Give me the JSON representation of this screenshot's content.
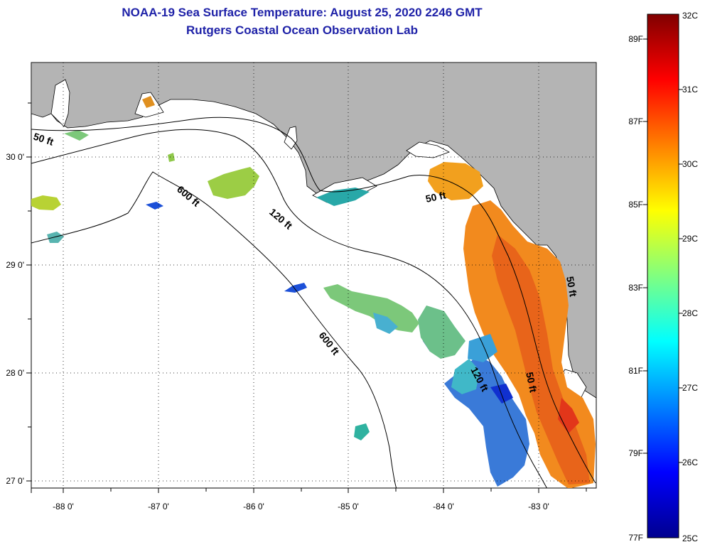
{
  "header": {
    "title": "NOAA-19 Sea Surface Temperature:  August 25, 2020 2246 GMT",
    "subtitle": "Rutgers Coastal Ocean Observation Lab"
  },
  "map": {
    "longitude_labels": [
      "-88 0'",
      "-87 0'",
      "-86 0'",
      "-85 0'",
      "-84 0'",
      "-83 0'"
    ],
    "latitude_labels": [
      "30 0'",
      "29 0'",
      "28 0'",
      "27 0'"
    ],
    "contour_labels": {
      "c50_nw": "50 ft",
      "c600_n": "600 ft",
      "c120": "120 ft",
      "c50_ne": "50 ft",
      "c600_s": "600 ft",
      "c120_s": "120 ft",
      "c50_se": "50 ft",
      "c50_e": "50 ft"
    }
  },
  "colorbar": {
    "fahrenheit_labels": [
      "89F",
      "87F",
      "85F",
      "83F",
      "81F",
      "79F",
      "77F"
    ],
    "celsius_labels": [
      "32C",
      "31C",
      "30C",
      "29C",
      "28C",
      "27C",
      "26C",
      "25C"
    ],
    "stops": [
      "#00008f",
      "#0000ff",
      "#0080ff",
      "#00ffff",
      "#80ff80",
      "#ffff00",
      "#ff8000",
      "#ff0000",
      "#800000"
    ]
  },
  "colors": {
    "land": "#b4b4b4",
    "title": "#1f22a8"
  }
}
